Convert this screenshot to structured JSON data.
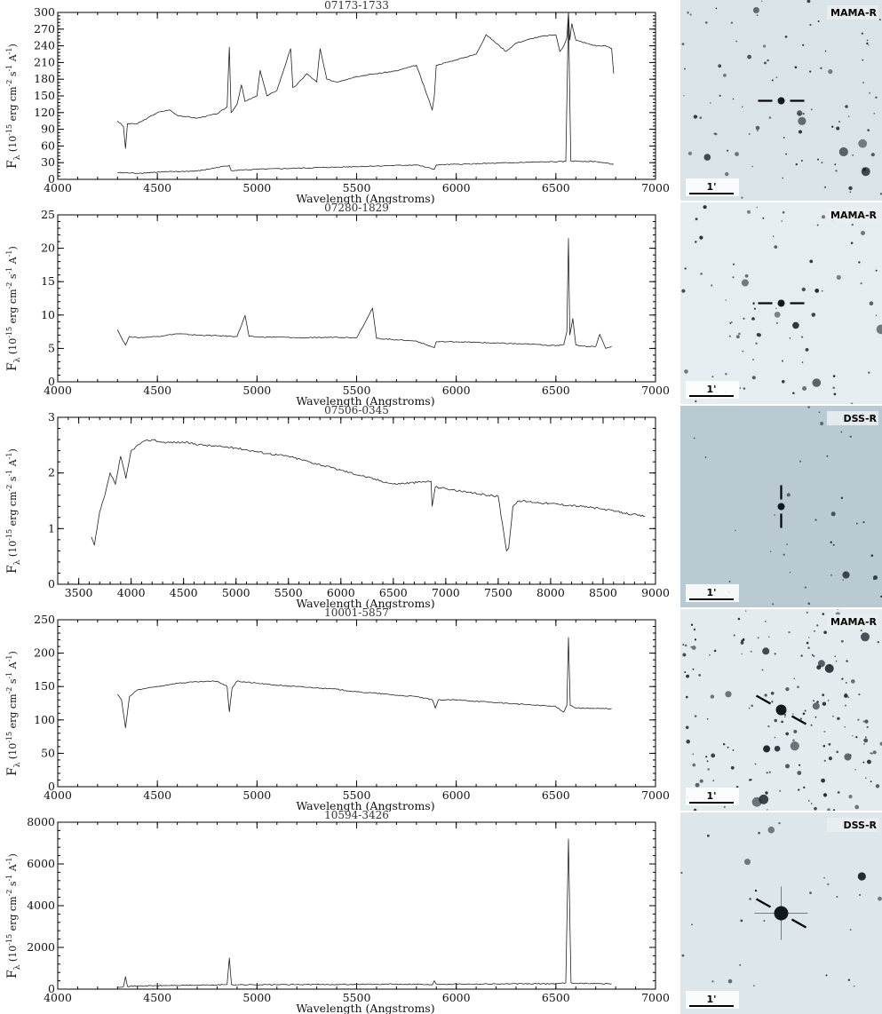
{
  "chart_data": [
    {
      "type": "line",
      "title": "07173-1733",
      "xlabel": "Wavelength (Angstroms)",
      "ylabel": {
        "f": "F",
        "sub": "λ",
        "unit": "(10",
        "exp": "-15",
        "mid": "erg cm",
        "e2": "-2",
        "s": "s",
        "e3": "-1",
        "a": "A",
        "e4": "-1",
        "close": ")"
      },
      "xlim": [
        4000,
        7000
      ],
      "ylim": [
        0,
        300
      ],
      "xticks": [
        4000,
        4500,
        5000,
        5500,
        6000,
        6500,
        7000
      ],
      "yticks": [
        0,
        30,
        60,
        90,
        120,
        150,
        180,
        210,
        240,
        270,
        300
      ],
      "series": [
        {
          "x": [
            4300,
            4330,
            4340,
            4350,
            4400,
            4450,
            4500,
            4560,
            4600,
            4700,
            4800,
            4850,
            4861,
            4870,
            4900,
            4922,
            4940,
            5000,
            5016,
            5050,
            5100,
            5169,
            5180,
            5200,
            5250,
            5300,
            5317,
            5350,
            5400,
            5500,
            5600,
            5700,
            5800,
            5880,
            5890,
            5900,
            6000,
            6100,
            6150,
            6250,
            6300,
            6350,
            6400,
            6450,
            6500,
            6520,
            6540,
            6555,
            6563,
            6570,
            6580,
            6600,
            6650,
            6700,
            6750,
            6780,
            6790
          ],
          "y": [
            105,
            95,
            55,
            100,
            100,
            110,
            120,
            125,
            115,
            110,
            118,
            130,
            238,
            120,
            135,
            170,
            140,
            150,
            196,
            150,
            160,
            235,
            165,
            170,
            190,
            175,
            235,
            180,
            175,
            185,
            190,
            195,
            205,
            125,
            150,
            205,
            215,
            225,
            260,
            230,
            245,
            250,
            255,
            258,
            260,
            230,
            240,
            255,
            300,
            250,
            280,
            250,
            245,
            240,
            240,
            235,
            190
          ]
        },
        {
          "x": [
            4300,
            4400,
            4500,
            4700,
            4861,
            4870,
            5000,
            5200,
            5500,
            5800,
            5890,
            5900,
            6000,
            6200,
            6400,
            6550,
            6563,
            6575,
            6700,
            6790
          ],
          "y": [
            12,
            11,
            13,
            15,
            25,
            16,
            18,
            20,
            23,
            26,
            18,
            26,
            27,
            29,
            31,
            32,
            300,
            33,
            32,
            27
          ]
        }
      ]
    },
    {
      "type": "line",
      "title": "07280-1829",
      "xlabel": "Wavelength (Angstroms)",
      "ylabel": {
        "f": "F",
        "sub": "λ",
        "unit": "(10",
        "exp": "-15",
        "mid": "erg cm",
        "e2": "-2",
        "s": "s",
        "e3": "-1",
        "a": "A",
        "e4": "-1",
        "close": ")"
      },
      "xlim": [
        4000,
        7000
      ],
      "ylim": [
        0,
        25
      ],
      "xticks": [
        4000,
        4500,
        5000,
        5500,
        6000,
        6500,
        7000
      ],
      "yticks": [
        0,
        5,
        10,
        15,
        20,
        25
      ],
      "series": [
        {
          "x": [
            4300,
            4320,
            4340,
            4360,
            4400,
            4500,
            4600,
            4700,
            4800,
            4900,
            4940,
            4960,
            5000,
            5100,
            5200,
            5300,
            5400,
            5500,
            5580,
            5600,
            5700,
            5800,
            5890,
            5900,
            6000,
            6100,
            6200,
            6300,
            6400,
            6500,
            6540,
            6555,
            6563,
            6570,
            6585,
            6600,
            6650,
            6700,
            6720,
            6750,
            6780
          ],
          "y": [
            7.8,
            6.6,
            5.5,
            6.8,
            6.6,
            6.8,
            7.2,
            7.0,
            6.9,
            6.8,
            9.9,
            6.8,
            6.7,
            6.7,
            6.6,
            6.6,
            6.7,
            6.6,
            11.0,
            6.5,
            6.3,
            6.1,
            5.1,
            6.0,
            6.0,
            5.9,
            5.8,
            5.7,
            5.6,
            5.4,
            5.6,
            7.5,
            21.5,
            7.0,
            9.5,
            5.5,
            5.3,
            5.3,
            7.1,
            5.0,
            5.3
          ]
        }
      ]
    },
    {
      "type": "line",
      "title": "07506-0345",
      "xlabel": "Wavelength (Angstroms)",
      "ylabel": {
        "f": "F",
        "sub": "λ",
        "unit": "(10",
        "exp": "-15",
        "mid": "erg cm",
        "e2": "-2",
        "s": "s",
        "e3": "-1",
        "a": "A",
        "e4": "-1",
        "close": ")"
      },
      "xlim": [
        3300,
        9000
      ],
      "ylim": [
        0,
        3
      ],
      "xticks": [
        3500,
        4000,
        4500,
        5000,
        5500,
        6000,
        6500,
        7000,
        7500,
        8000,
        8500,
        9000
      ],
      "yticks": [
        0,
        1,
        2,
        3
      ],
      "series": [
        {
          "x": [
            3620,
            3650,
            3700,
            3750,
            3800,
            3850,
            3900,
            3950,
            4000,
            4100,
            4200,
            4300,
            4500,
            4700,
            5000,
            5300,
            5500,
            6000,
            6500,
            6860,
            6870,
            6900,
            7000,
            7200,
            7500,
            7580,
            7600,
            7640,
            7700,
            8000,
            8300,
            8500,
            8700,
            8900
          ],
          "y": [
            0.85,
            0.7,
            1.3,
            1.6,
            2.0,
            1.8,
            2.3,
            1.9,
            2.4,
            2.55,
            2.6,
            2.55,
            2.55,
            2.5,
            2.45,
            2.35,
            2.3,
            2.05,
            1.8,
            1.85,
            1.4,
            1.75,
            1.72,
            1.65,
            1.58,
            0.6,
            0.65,
            1.4,
            1.5,
            1.45,
            1.4,
            1.35,
            1.28,
            1.22
          ]
        }
      ]
    },
    {
      "type": "line",
      "title": "10001-5857",
      "xlabel": "Wavelength (Angstroms)",
      "ylabel": {
        "f": "F",
        "sub": "λ",
        "unit": "(10",
        "exp": "-15",
        "mid": "erg cm",
        "e2": "-2",
        "s": "s",
        "e3": "-1",
        "a": "A",
        "e4": "-1",
        "close": ")"
      },
      "xlim": [
        4000,
        7000
      ],
      "ylim": [
        0,
        250
      ],
      "xticks": [
        4000,
        4500,
        5000,
        5500,
        6000,
        6500,
        7000
      ],
      "yticks": [
        0,
        50,
        100,
        150,
        200,
        250
      ],
      "series": [
        {
          "x": [
            4300,
            4320,
            4340,
            4360,
            4400,
            4500,
            4600,
            4700,
            4800,
            4850,
            4861,
            4875,
            4900,
            5000,
            5100,
            5200,
            5300,
            5400,
            5500,
            5600,
            5700,
            5800,
            5880,
            5895,
            5910,
            6000,
            6100,
            6200,
            6300,
            6400,
            6500,
            6540,
            6555,
            6563,
            6572,
            6600,
            6700,
            6780
          ],
          "y": [
            138,
            130,
            88,
            135,
            145,
            150,
            155,
            157,
            158,
            150,
            112,
            148,
            158,
            155,
            152,
            150,
            148,
            146,
            142,
            140,
            137,
            135,
            130,
            118,
            130,
            130,
            128,
            126,
            124,
            122,
            120,
            112,
            122,
            224,
            122,
            118,
            117,
            117
          ]
        }
      ]
    },
    {
      "type": "line",
      "title": "10594-3426",
      "xlabel": "Wavelength (Angstroms)",
      "ylabel": {
        "f": "F",
        "sub": "λ",
        "unit": "(10",
        "exp": "-15",
        "mid": "erg cm",
        "e2": "-2",
        "s": "s",
        "e3": "-1",
        "a": "A",
        "e4": "-1",
        "close": ")"
      },
      "xlim": [
        4000,
        7000
      ],
      "ylim": [
        0,
        8000
      ],
      "xticks": [
        4000,
        4500,
        5000,
        5500,
        6000,
        6500,
        7000
      ],
      "yticks": [
        0,
        2000,
        4000,
        6000,
        8000
      ],
      "series": [
        {
          "x": [
            4300,
            4330,
            4340,
            4350,
            4400,
            4600,
            4800,
            4850,
            4861,
            4872,
            4900,
            5200,
            5500,
            5800,
            5880,
            5890,
            5900,
            6200,
            6500,
            6550,
            6563,
            6576,
            6600,
            6700,
            6780
          ],
          "y": [
            100,
            120,
            600,
            130,
            150,
            180,
            200,
            220,
            1500,
            220,
            210,
            220,
            230,
            240,
            200,
            400,
            240,
            250,
            260,
            300,
            7200,
            300,
            280,
            270,
            260
          ]
        }
      ]
    }
  ],
  "finders": [
    {
      "survey": "MAMA-R",
      "scale": "1'",
      "seed": 11,
      "bg": "#d9e3e8",
      "stars": 95,
      "markers": "horizontal"
    },
    {
      "survey": "MAMA-R",
      "scale": "1'",
      "seed": 23,
      "bg": "#e6edf1",
      "stars": 80,
      "markers": "horizontal"
    },
    {
      "survey": "DSS-R",
      "scale": "1'",
      "seed": 37,
      "bg": "#b9cad2",
      "stars": 35,
      "markers": "vertical"
    },
    {
      "survey": "MAMA-R",
      "scale": "1'",
      "seed": 41,
      "bg": "#e3ebef",
      "stars": 180,
      "markers": "diagonal"
    },
    {
      "survey": "DSS-R",
      "scale": "1'",
      "seed": 53,
      "bg": "#dde6ea",
      "stars": 30,
      "markers": "diagonal"
    }
  ]
}
